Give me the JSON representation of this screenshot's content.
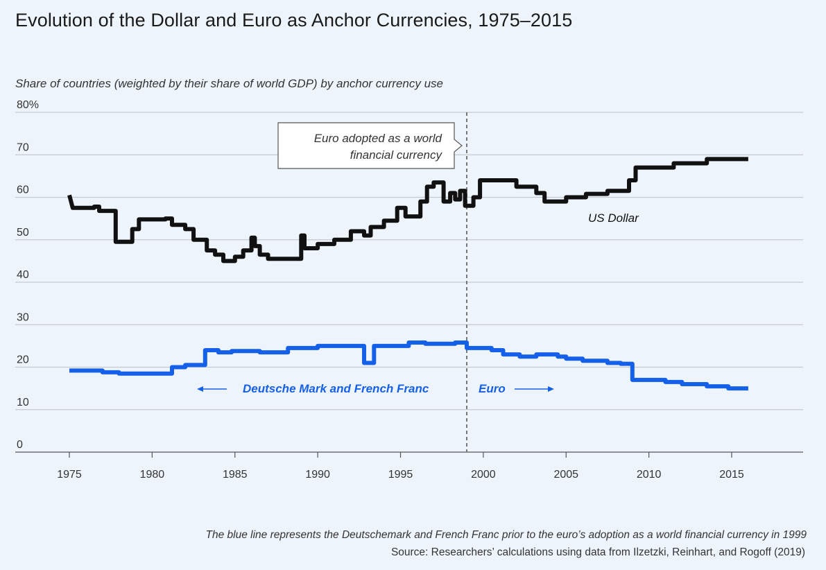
{
  "title": "Evolution of the Dollar and Euro as Anchor Currencies, 1975–2015",
  "subtitle": "Share of countries (weighted by their share of world GDP) by anchor currency use",
  "footnote": "The blue line represents the Deutschemark and French Franc prior to the euro’s adoption as a world financial currency in 1999",
  "source": "Source: Researchers’ calculations using data from Ilzetzki, Reinhart, and Rogoff (2019)",
  "colors": {
    "background": "#eef4fb",
    "dollar": "#111111",
    "euro": "#1560e8",
    "grid": "#c4c9cf",
    "marker": "#777777"
  },
  "chart_data": {
    "type": "line",
    "title": "Evolution of the Dollar and Euro as Anchor Currencies, 1975–2015",
    "ylabel": "Share of countries (weighted by their share of world GDP) by anchor currency use",
    "xlabel": "",
    "xlim": [
      1973,
      2019.5
    ],
    "ylim": [
      0,
      80
    ],
    "xticks": [
      1975,
      1980,
      1985,
      1990,
      1995,
      2000,
      2005,
      2010,
      2015
    ],
    "yticks": [
      {
        "value": 0,
        "label": "0"
      },
      {
        "value": 10,
        "label": "10"
      },
      {
        "value": 20,
        "label": "20"
      },
      {
        "value": 30,
        "label": "30"
      },
      {
        "value": 40,
        "label": "40"
      },
      {
        "value": 50,
        "label": "50"
      },
      {
        "value": 60,
        "label": "60"
      },
      {
        "value": 70,
        "label": "70"
      },
      {
        "value": 80,
        "label": "80%"
      }
    ],
    "grid": "horizontal",
    "series": [
      {
        "name": "US Dollar",
        "color": "#111111",
        "points": [
          [
            1975.0,
            60.5
          ],
          [
            1975.2,
            57.5
          ],
          [
            1976.5,
            57.5
          ],
          [
            1976.5,
            57.8
          ],
          [
            1976.8,
            57.8
          ],
          [
            1976.8,
            56.8
          ],
          [
            1977.8,
            56.8
          ],
          [
            1977.8,
            49.5
          ],
          [
            1978.8,
            49.5
          ],
          [
            1978.8,
            52.5
          ],
          [
            1979.2,
            52.5
          ],
          [
            1979.2,
            54.8
          ],
          [
            1980.8,
            54.8
          ],
          [
            1980.8,
            55.0
          ],
          [
            1981.2,
            55.0
          ],
          [
            1981.2,
            53.5
          ],
          [
            1982.0,
            53.5
          ],
          [
            1982.0,
            52.5
          ],
          [
            1982.5,
            52.5
          ],
          [
            1982.5,
            50.0
          ],
          [
            1983.3,
            50.0
          ],
          [
            1983.3,
            47.5
          ],
          [
            1983.8,
            47.5
          ],
          [
            1983.8,
            46.5
          ],
          [
            1984.3,
            46.5
          ],
          [
            1984.3,
            45.0
          ],
          [
            1985.0,
            45.0
          ],
          [
            1985.0,
            46.0
          ],
          [
            1985.5,
            46.0
          ],
          [
            1985.5,
            47.5
          ],
          [
            1986.0,
            47.5
          ],
          [
            1986.0,
            50.5
          ],
          [
            1986.2,
            50.5
          ],
          [
            1986.2,
            48.5
          ],
          [
            1986.5,
            48.5
          ],
          [
            1986.5,
            46.5
          ],
          [
            1987.0,
            46.5
          ],
          [
            1987.0,
            45.5
          ],
          [
            1989.0,
            45.5
          ],
          [
            1989.0,
            51.0
          ],
          [
            1989.2,
            51.0
          ],
          [
            1989.2,
            48.0
          ],
          [
            1990.0,
            48.0
          ],
          [
            1990.0,
            49.0
          ],
          [
            1991.0,
            49.0
          ],
          [
            1991.0,
            50.0
          ],
          [
            1992.0,
            50.0
          ],
          [
            1992.0,
            52.0
          ],
          [
            1992.8,
            52.0
          ],
          [
            1992.8,
            51.0
          ],
          [
            1993.2,
            51.0
          ],
          [
            1993.2,
            53.0
          ],
          [
            1994.0,
            53.0
          ],
          [
            1994.0,
            54.5
          ],
          [
            1994.8,
            54.5
          ],
          [
            1994.8,
            57.5
          ],
          [
            1995.3,
            57.5
          ],
          [
            1995.3,
            55.5
          ],
          [
            1996.2,
            55.5
          ],
          [
            1996.2,
            59.0
          ],
          [
            1996.6,
            59.0
          ],
          [
            1996.6,
            62.5
          ],
          [
            1997.0,
            62.5
          ],
          [
            1997.0,
            63.5
          ],
          [
            1997.6,
            63.5
          ],
          [
            1997.6,
            59.0
          ],
          [
            1998.0,
            59.0
          ],
          [
            1998.0,
            61.0
          ],
          [
            1998.3,
            61.0
          ],
          [
            1998.3,
            59.5
          ],
          [
            1998.6,
            59.5
          ],
          [
            1998.6,
            61.5
          ],
          [
            1998.9,
            61.5
          ],
          [
            1998.9,
            58.0
          ],
          [
            1999.4,
            58.0
          ],
          [
            1999.4,
            60.0
          ],
          [
            1999.8,
            60.0
          ],
          [
            1999.8,
            64.0
          ],
          [
            2002.0,
            64.0
          ],
          [
            2002.0,
            62.5
          ],
          [
            2003.2,
            62.5
          ],
          [
            2003.2,
            61.0
          ],
          [
            2003.7,
            61.0
          ],
          [
            2003.7,
            59.0
          ],
          [
            2005.0,
            59.0
          ],
          [
            2005.0,
            60.0
          ],
          [
            2006.2,
            60.0
          ],
          [
            2006.2,
            60.8
          ],
          [
            2007.5,
            60.8
          ],
          [
            2007.5,
            61.5
          ],
          [
            2008.8,
            61.5
          ],
          [
            2008.8,
            64.0
          ],
          [
            2009.2,
            64.0
          ],
          [
            2009.2,
            67.0
          ],
          [
            2011.5,
            67.0
          ],
          [
            2011.5,
            68.0
          ],
          [
            2013.5,
            68.0
          ],
          [
            2013.5,
            69.0
          ],
          [
            2016.0,
            69.0
          ]
        ]
      },
      {
        "name": "Deutsche Mark and French Franc / Euro",
        "color": "#1560e8",
        "points": [
          [
            1975.0,
            19.2
          ],
          [
            1977.0,
            19.2
          ],
          [
            1977.0,
            18.8
          ],
          [
            1978.0,
            18.8
          ],
          [
            1978.0,
            18.5
          ],
          [
            1981.2,
            18.5
          ],
          [
            1981.2,
            20.0
          ],
          [
            1982.0,
            20.0
          ],
          [
            1982.0,
            20.5
          ],
          [
            1983.2,
            20.5
          ],
          [
            1983.2,
            24.0
          ],
          [
            1984.0,
            24.0
          ],
          [
            1984.0,
            23.5
          ],
          [
            1984.8,
            23.5
          ],
          [
            1984.8,
            23.8
          ],
          [
            1986.5,
            23.8
          ],
          [
            1986.5,
            23.5
          ],
          [
            1988.2,
            23.5
          ],
          [
            1988.2,
            24.5
          ],
          [
            1990.0,
            24.5
          ],
          [
            1990.0,
            25.0
          ],
          [
            1992.8,
            25.0
          ],
          [
            1992.8,
            21.0
          ],
          [
            1993.4,
            21.0
          ],
          [
            1993.4,
            25.0
          ],
          [
            1995.5,
            25.0
          ],
          [
            1995.5,
            25.8
          ],
          [
            1996.5,
            25.8
          ],
          [
            1996.5,
            25.5
          ],
          [
            1998.3,
            25.5
          ],
          [
            1998.3,
            25.8
          ],
          [
            1999.0,
            25.8
          ],
          [
            1999.0,
            24.5
          ],
          [
            2000.5,
            24.5
          ],
          [
            2000.5,
            24.0
          ],
          [
            2001.2,
            24.0
          ],
          [
            2001.2,
            23.0
          ],
          [
            2002.2,
            23.0
          ],
          [
            2002.2,
            22.5
          ],
          [
            2003.2,
            22.5
          ],
          [
            2003.2,
            23.0
          ],
          [
            2004.5,
            23.0
          ],
          [
            2004.5,
            22.5
          ],
          [
            2005.0,
            22.5
          ],
          [
            2005.0,
            22.0
          ],
          [
            2006.0,
            22.0
          ],
          [
            2006.0,
            21.5
          ],
          [
            2007.5,
            21.5
          ],
          [
            2007.5,
            21.0
          ],
          [
            2008.3,
            21.0
          ],
          [
            2008.3,
            20.8
          ],
          [
            2009.0,
            20.8
          ],
          [
            2009.0,
            17.0
          ],
          [
            2011.0,
            17.0
          ],
          [
            2011.0,
            16.5
          ],
          [
            2012.0,
            16.5
          ],
          [
            2012.0,
            16.0
          ],
          [
            2013.5,
            16.0
          ],
          [
            2013.5,
            15.5
          ],
          [
            2014.8,
            15.5
          ],
          [
            2014.8,
            15.0
          ],
          [
            2016.0,
            15.0
          ]
        ]
      }
    ],
    "annotations": [
      {
        "id": "euro_adopted",
        "text_line1": "Euro adopted as a world",
        "text_line2": "financial currency",
        "x": 1999
      },
      {
        "id": "dollar_label",
        "text": "US Dollar"
      },
      {
        "id": "dm_label",
        "text": "Deutsche Mark and French Franc"
      },
      {
        "id": "euro_label",
        "text": "Euro"
      }
    ]
  }
}
